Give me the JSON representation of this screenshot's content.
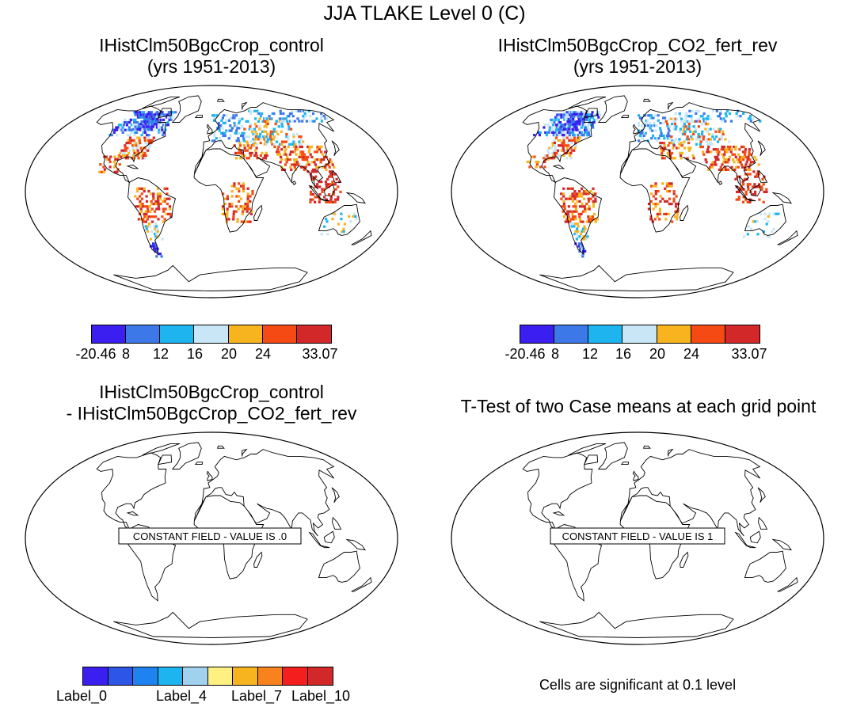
{
  "main_title": "JJA TLAKE Level 0 (C)",
  "panels": [
    {
      "title1": "IHistClm50BgcCrop_control",
      "title2": "(yrs 1951-2013)"
    },
    {
      "title1": "IHistClm50BgcCrop_CO2_fert_rev",
      "title2": "(yrs 1951-2013)"
    },
    {
      "title1": "IHistClm50BgcCrop_control",
      "title2": "- IHistClm50BgcCrop_CO2_fert_rev",
      "box_label": "CONSTANT FIELD - VALUE IS .0"
    },
    {
      "title1": "T-Test of two Case means at each grid point",
      "box_label": "CONSTANT FIELD - VALUE IS 1"
    }
  ],
  "colorbar_top": {
    "colors": [
      "#3a1ff0",
      "#3c78e8",
      "#1eb4f0",
      "#c8e6f5",
      "#f7b41e",
      "#f54a14",
      "#d2282a"
    ],
    "labels": [
      "-20.46",
      "8",
      "12",
      "16",
      "20",
      "24",
      "33.07"
    ]
  },
  "colorbar_bottom": {
    "colors": [
      "#3a1ff0",
      "#2d55e6",
      "#1e82f0",
      "#1eb4f0",
      "#a0d2f0",
      "#fff082",
      "#f7b41e",
      "#f7821e",
      "#f51e1e",
      "#d2282a"
    ],
    "labels": [
      "Label_0",
      "Label_4",
      "Label_7",
      "Label_10"
    ]
  },
  "significance_note": "Cells are significant at 0.1 level"
}
